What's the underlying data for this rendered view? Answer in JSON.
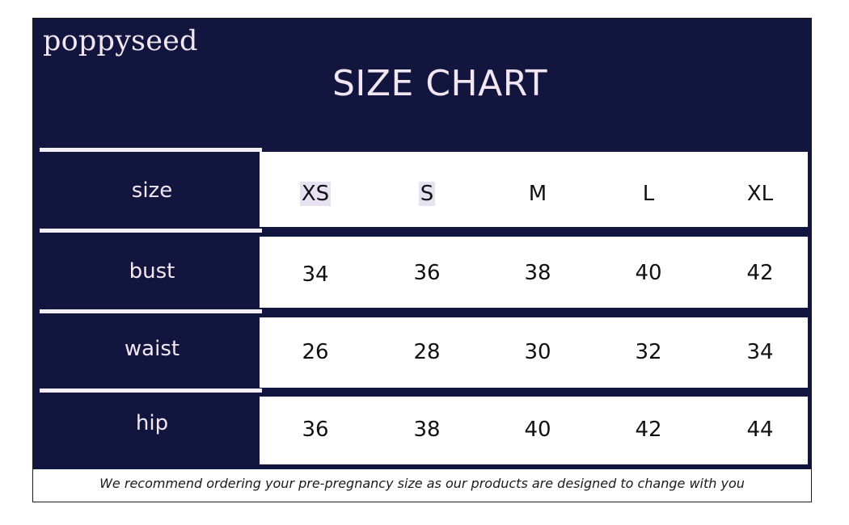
{
  "brand": "poppyseed",
  "title": "SIZE CHART",
  "rows": [
    {
      "label": "size",
      "values": [
        "XS",
        "S",
        "M",
        "L",
        "XL"
      ]
    },
    {
      "label": "bust",
      "values": [
        "34",
        "36",
        "38",
        "40",
        "42"
      ]
    },
    {
      "label": "waist",
      "values": [
        "26",
        "28",
        "30",
        "32",
        "34"
      ]
    },
    {
      "label": "hip",
      "values": [
        "36",
        "38",
        "40",
        "42",
        "44"
      ]
    }
  ],
  "footnote": "We recommend ordering your pre-pregnancy size as our products are designed to change with you",
  "colors": {
    "navy": "#12153d",
    "text_light": "#f3e6f3",
    "panel": "#ffffff"
  }
}
